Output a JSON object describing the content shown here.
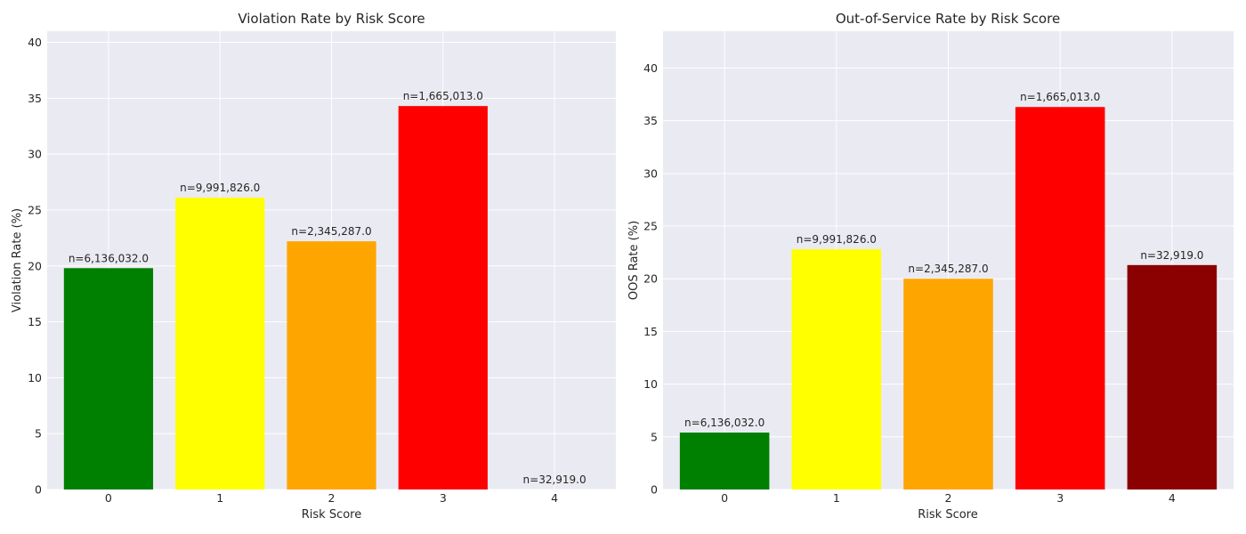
{
  "chart_data": [
    {
      "type": "bar",
      "title": "Violation Rate by Risk Score",
      "xlabel": "Risk Score",
      "ylabel": "Violation Rate (%)",
      "ylim": [
        0,
        41
      ],
      "yticks": [
        0,
        5,
        10,
        15,
        20,
        25,
        30,
        35,
        40
      ],
      "grid": true,
      "categories": [
        "0",
        "1",
        "2",
        "3",
        "4"
      ],
      "values": [
        19.8,
        26.1,
        22.2,
        34.3,
        0.0
      ],
      "bar_labels": [
        "n=6,136,032.0",
        "n=9,991,826.0",
        "n=2,345,287.0",
        "n=1,665,013.0",
        "n=32,919.0"
      ],
      "colors": [
        "#008000",
        "#ffff00",
        "#ffa500",
        "#ff0000",
        "#8b0000"
      ]
    },
    {
      "type": "bar",
      "title": "Out-of-Service Rate by Risk Score",
      "xlabel": "Risk Score",
      "ylabel": "OOS Rate (%)",
      "ylim": [
        0,
        43.5
      ],
      "yticks": [
        0,
        5,
        10,
        15,
        20,
        25,
        30,
        35,
        40
      ],
      "grid": true,
      "categories": [
        "0",
        "1",
        "2",
        "3",
        "4"
      ],
      "values": [
        5.4,
        22.8,
        20.0,
        36.3,
        21.3
      ],
      "bar_labels": [
        "n=6,136,032.0",
        "n=9,991,826.0",
        "n=2,345,287.0",
        "n=1,665,013.0",
        "n=32,919.0"
      ],
      "colors": [
        "#008000",
        "#ffff00",
        "#ffa500",
        "#ff0000",
        "#8b0000"
      ]
    }
  ]
}
